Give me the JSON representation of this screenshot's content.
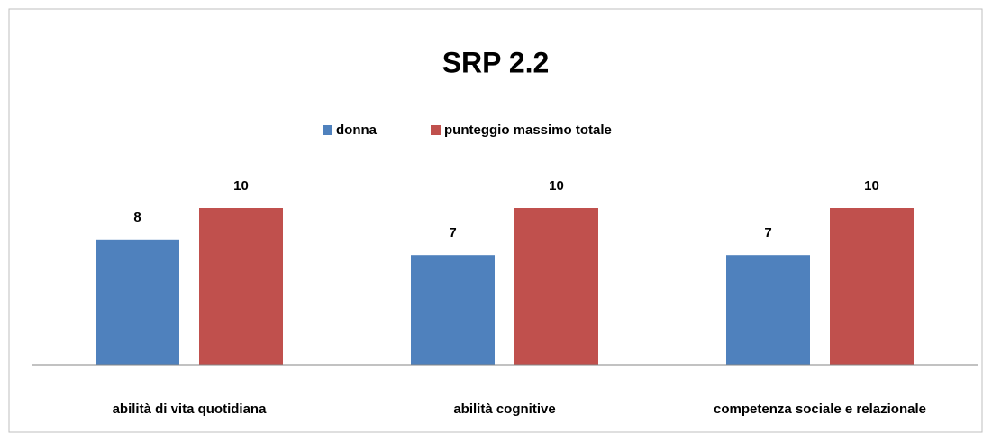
{
  "chart_data": {
    "type": "bar",
    "title": "SRP 2.2",
    "categories": [
      "abilità di vita quotidiana",
      "abilità cognitive",
      "competenza sociale e relazionale"
    ],
    "series": [
      {
        "name": "donna",
        "color": "#4f81bd",
        "values": [
          8,
          7,
          7
        ]
      },
      {
        "name": "punteggio massimo totale",
        "color": "#c0504d",
        "values": [
          10,
          10,
          10
        ]
      }
    ],
    "ylim": [
      0,
      10
    ],
    "legend": "top",
    "data_labels": true
  }
}
